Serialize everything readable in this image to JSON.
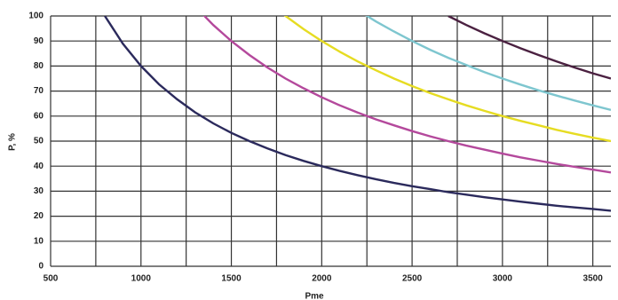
{
  "chart_data": {
    "type": "line",
    "x_label": "Pme",
    "y_label": "P, %",
    "x": [
      800,
      900,
      1000,
      1100,
      1200,
      1300,
      1400,
      1500,
      1600,
      1700,
      1800,
      1900,
      2000,
      2100,
      2200,
      2300,
      2400,
      2500,
      2600,
      2700,
      2800,
      2900,
      3000,
      3100,
      3200,
      3300,
      3400,
      3500,
      3600
    ],
    "series": [
      {
        "color": "#2b2a5c",
        "values": [
          100,
          88.9,
          80,
          72.7,
          66.7,
          61.5,
          57.1,
          53.3,
          50,
          47.1,
          44.4,
          42.1,
          40,
          38.1,
          36.4,
          34.8,
          33.3,
          32,
          30.8,
          29.6,
          28.6,
          27.6,
          26.7,
          25.8,
          25,
          24.2,
          23.5,
          22.9,
          22.2
        ]
      },
      {
        "color": "#b4499c",
        "values": [
          null,
          null,
          null,
          null,
          null,
          103.8,
          96.4,
          90,
          84.4,
          79.4,
          75,
          71.1,
          67.5,
          64.3,
          61.4,
          58.7,
          56.3,
          54,
          51.9,
          50,
          48.2,
          46.6,
          45,
          43.5,
          42.2,
          40.9,
          39.7,
          38.6,
          37.5
        ]
      },
      {
        "color": "#e6dc22",
        "values": [
          null,
          null,
          null,
          null,
          null,
          null,
          null,
          null,
          null,
          105.9,
          100,
          94.7,
          90,
          85.7,
          81.8,
          78.3,
          75,
          72,
          69.2,
          66.7,
          64.3,
          62.1,
          60,
          58.1,
          56.3,
          54.5,
          52.9,
          51.4,
          50
        ]
      },
      {
        "color": "#7ec6cf",
        "values": [
          null,
          null,
          null,
          null,
          null,
          null,
          null,
          null,
          null,
          null,
          null,
          null,
          null,
          null,
          102.3,
          97.8,
          93.8,
          90,
          86.5,
          83.3,
          80.4,
          77.6,
          75,
          72.6,
          70.3,
          68.2,
          66.2,
          64.3,
          62.5
        ]
      },
      {
        "color": "#4b2141",
        "values": [
          null,
          null,
          null,
          null,
          null,
          null,
          null,
          null,
          null,
          null,
          null,
          null,
          null,
          null,
          null,
          null,
          null,
          null,
          null,
          100,
          96.4,
          93.1,
          90,
          87.1,
          84.4,
          81.8,
          79.4,
          77.1,
          75
        ]
      }
    ],
    "xlim": [
      500,
      3600
    ],
    "ylim": [
      0,
      100
    ],
    "xticks": [
      500,
      1000,
      1500,
      2000,
      2500,
      3000,
      3500
    ],
    "xminor": [
      750,
      1250,
      1750,
      2250,
      2750,
      3250
    ],
    "yticks": [
      0,
      10,
      20,
      30,
      40,
      50,
      60,
      70,
      80,
      90,
      100
    ],
    "grid": true
  }
}
